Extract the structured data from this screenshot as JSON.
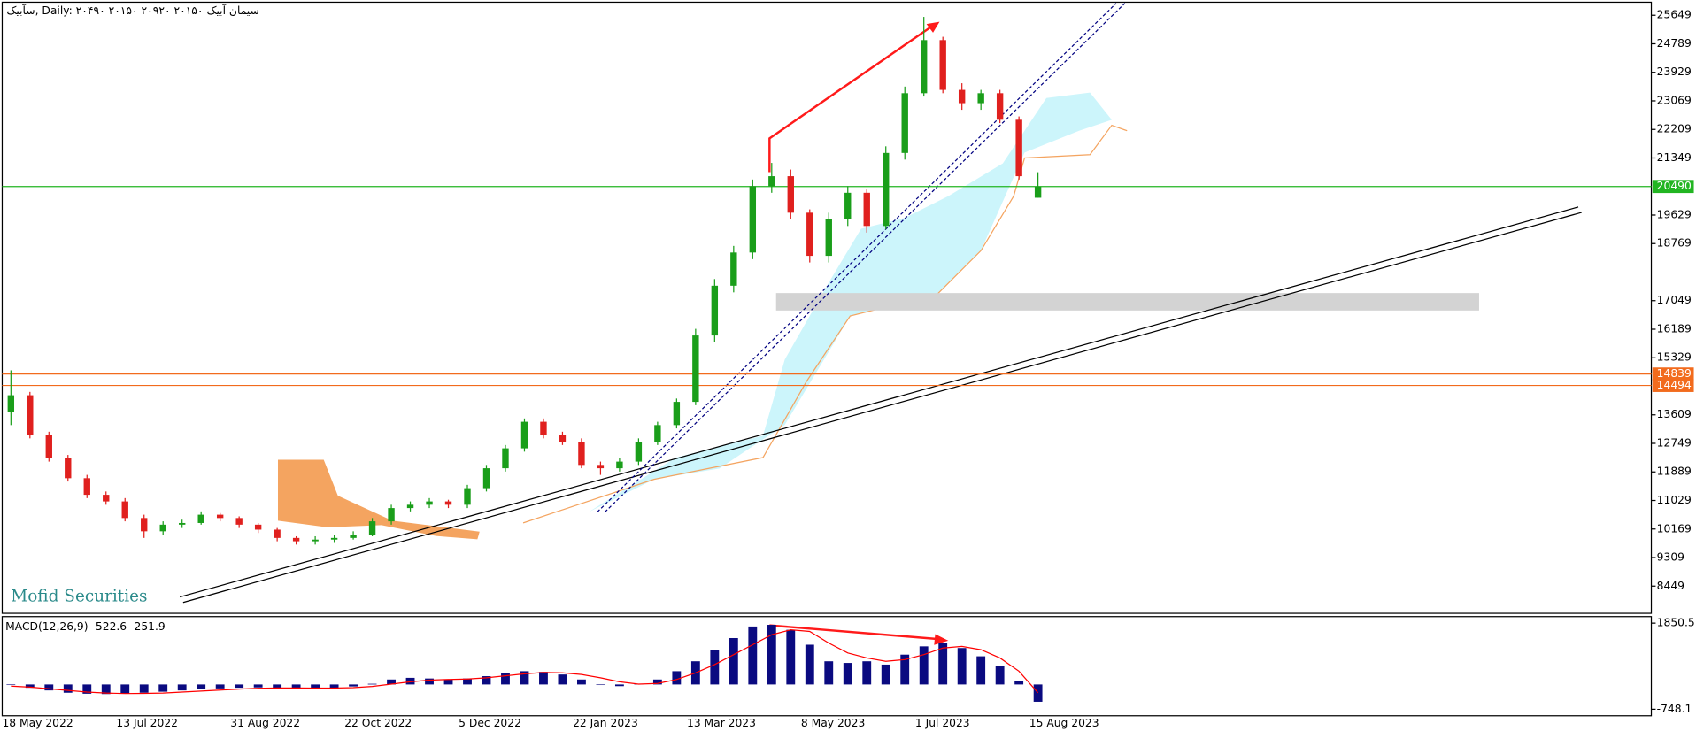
{
  "chart_data": [
    {
      "type": "candlestick",
      "title": "سآبیک, Daily:  ۲۰۴۹۰ ۲۰۱۵۰ ۲۰۹۲۰ ۲۰۱۵۰  سیمان آبیک",
      "watermark": "Mofid Securities",
      "categories": [
        "18 May 2022",
        null,
        null,
        null,
        null,
        null,
        "13 Jul 2022",
        null,
        null,
        null,
        null,
        null,
        "31 Aug 2022",
        null,
        null,
        null,
        null,
        null,
        "22 Oct 2022",
        null,
        null,
        null,
        null,
        null,
        "5 Dec 2022",
        null,
        null,
        null,
        null,
        null,
        "22 Jan 2023",
        null,
        null,
        null,
        null,
        null,
        "13 Mar 2023",
        null,
        null,
        null,
        null,
        null,
        "8 May 2023",
        null,
        null,
        null,
        null,
        null,
        "1 Jul 2023",
        null,
        null,
        null,
        null,
        null,
        "15 Aug 2023"
      ],
      "open": [
        13700,
        14200,
        13000,
        12300,
        11700,
        11200,
        11000,
        10500,
        10100,
        10300,
        10350,
        10600,
        10500,
        10300,
        10150,
        9900,
        9800,
        9850,
        9900,
        10000,
        10400,
        10800,
        10900,
        11000,
        10900,
        11400,
        12000,
        12600,
        13400,
        13000,
        12800,
        12100,
        12000,
        12200,
        12800,
        13300,
        14000,
        16000,
        17500,
        18500,
        20500,
        20800,
        19700,
        18400,
        19500,
        20300,
        19300,
        21500,
        23300,
        24900,
        23400,
        23000,
        23300,
        22500,
        20150
      ],
      "high": [
        14950,
        14300,
        13100,
        12400,
        11800,
        11300,
        11100,
        10600,
        10400,
        10450,
        10700,
        10650,
        10550,
        10350,
        10200,
        9950,
        9950,
        10000,
        10100,
        10500,
        10900,
        11000,
        11100,
        11050,
        11500,
        12100,
        12700,
        13500,
        13500,
        13100,
        12900,
        12200,
        12300,
        12900,
        13400,
        14100,
        16200,
        17700,
        18700,
        20700,
        21200,
        21000,
        19800,
        19700,
        20500,
        20400,
        21700,
        23500,
        25600,
        25000,
        23600,
        23400,
        23400,
        22600,
        20920
      ],
      "low": [
        13300,
        12900,
        12200,
        11600,
        11100,
        10900,
        10400,
        9900,
        10000,
        10200,
        10300,
        10400,
        10200,
        10050,
        9800,
        9700,
        9700,
        9750,
        9850,
        9950,
        10300,
        10700,
        10800,
        10800,
        10800,
        11300,
        11900,
        12500,
        12900,
        12700,
        12000,
        11800,
        11900,
        12100,
        12700,
        13200,
        13900,
        15800,
        17300,
        18300,
        20300,
        19500,
        18200,
        18200,
        19300,
        19100,
        19200,
        21300,
        23200,
        23300,
        22800,
        22800,
        22400,
        20700,
        20150
      ],
      "close": [
        14200,
        13000,
        12300,
        11700,
        11200,
        11000,
        10500,
        10100,
        10300,
        10350,
        10600,
        10500,
        10300,
        10150,
        9900,
        9800,
        9850,
        9900,
        10000,
        10400,
        10800,
        10900,
        11000,
        10900,
        11400,
        12000,
        12600,
        13400,
        13000,
        12800,
        12100,
        12000,
        12200,
        12800,
        13300,
        14000,
        16000,
        17500,
        18500,
        20500,
        20800,
        19700,
        18400,
        19500,
        20300,
        19300,
        21500,
        23300,
        24900,
        23400,
        23000,
        23300,
        22500,
        20800,
        20490
      ],
      "up_color": "#1a9e1a",
      "down_color": "#e0201e",
      "ylim": [
        7628,
        26010
      ],
      "yticks": [
        25649,
        24789,
        23929,
        23069,
        22209,
        21349,
        19629,
        18769,
        17049,
        16189,
        15329,
        13609,
        12749,
        11889,
        11029,
        10169,
        9309,
        8449
      ],
      "levels": [
        {
          "value": 20490,
          "color": "#22b522"
        },
        {
          "value": 14839,
          "color": "#f26b1d"
        },
        {
          "value": 14494,
          "color": "#f26b1d"
        }
      ]
    },
    {
      "type": "macd",
      "title": "MACD(12,26,9)",
      "series": [
        {
          "color": "#0a0a80",
          "values": [
            0,
            -100,
            -180,
            -250,
            -280,
            -290,
            -280,
            -250,
            -220,
            -180,
            -150,
            -120,
            -100,
            -90,
            -100,
            -110,
            -120,
            -100,
            -60,
            20,
            150,
            200,
            180,
            150,
            180,
            250,
            350,
            400,
            380,
            300,
            150,
            0,
            -50,
            20,
            150,
            400,
            700,
            1050,
            1400,
            1750,
            1800,
            1650,
            1200,
            700,
            650,
            700,
            600,
            900,
            1150,
            1250,
            1100,
            850,
            550,
            100,
            -522.6
          ]
        },
        {
          "color": "#ff0000",
          "values": [
            -50,
            -80,
            -130,
            -180,
            -230,
            -260,
            -275,
            -270,
            -260,
            -230,
            -200,
            -170,
            -140,
            -115,
            -105,
            -105,
            -110,
            -108,
            -95,
            -60,
            10,
            80,
            130,
            150,
            165,
            200,
            260,
            320,
            360,
            350,
            300,
            200,
            80,
            10,
            30,
            150,
            350,
            600,
            900,
            1200,
            1500,
            1650,
            1600,
            1250,
            950,
            800,
            700,
            750,
            900,
            1100,
            1150,
            1050,
            800,
            400,
            -251.9
          ]
        }
      ],
      "ylim": [
        -945,
        2048
      ],
      "yticks": [
        1850.5,
        -748.1
      ]
    }
  ]
}
